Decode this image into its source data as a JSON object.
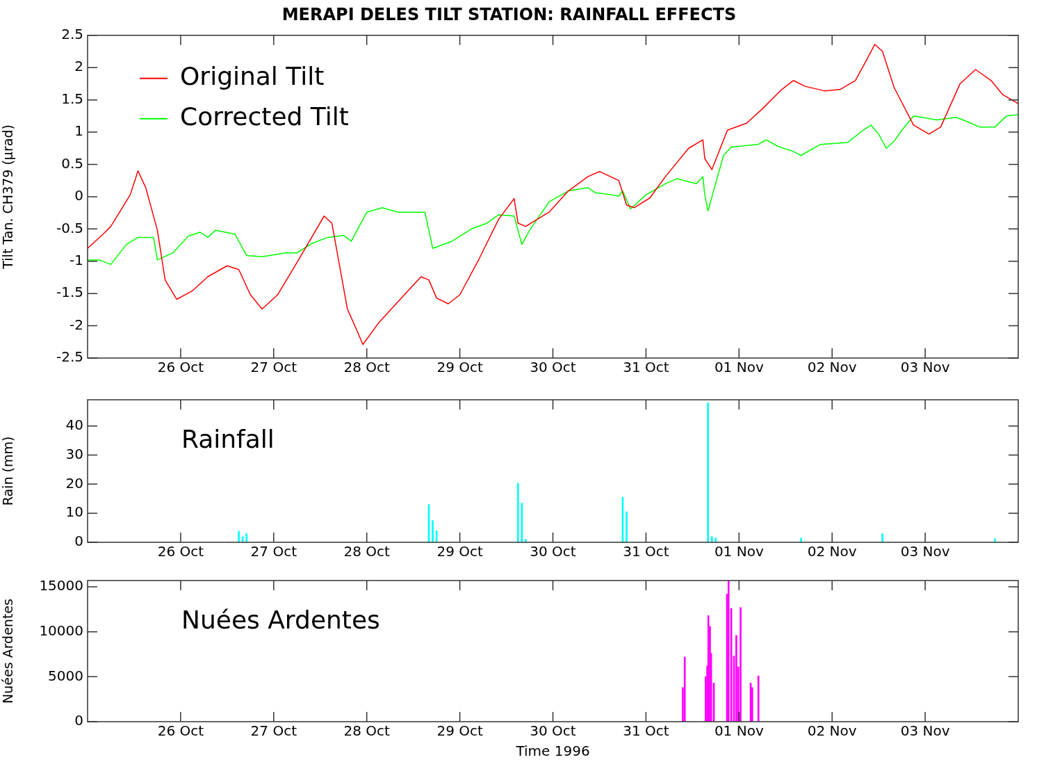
{
  "chart_data": [
    {
      "type": "line",
      "title": "MERAPI DELES TILT STATION: RAINFALL EFFECTS",
      "ylabel": "Tilt Tan. CH379 (µrad)",
      "legend": "top left",
      "xlim": [
        "1996-10-25",
        "1996-11-04"
      ],
      "xticks": [
        {
          "value": "1996-10-26",
          "label": "26 Oct"
        },
        {
          "value": "1996-10-27",
          "label": "27 Oct"
        },
        {
          "value": "1996-10-28",
          "label": "28 Oct"
        },
        {
          "value": "1996-10-29",
          "label": "29 Oct"
        },
        {
          "value": "1996-10-30",
          "label": "30 Oct"
        },
        {
          "value": "1996-10-31",
          "label": "31 Oct"
        },
        {
          "value": "1996-11-01",
          "label": "01 Nov"
        },
        {
          "value": "1996-11-02",
          "label": "02 Nov"
        },
        {
          "value": "1996-11-03",
          "label": "03 Nov"
        }
      ],
      "ylim": [
        -2.5,
        2.5
      ],
      "yticks": [
        -2.5,
        -2,
        -1.5,
        -1,
        -0.5,
        0,
        0.5,
        1,
        1.5,
        2,
        2.5
      ],
      "grid": false,
      "series": [
        {
          "name": "Original Tilt",
          "color": "#ff0000",
          "x": [
            "1996-10-25T00:00",
            "1996-10-25T04:00",
            "1996-10-25T06:00",
            "1996-10-25T11:00",
            "1996-10-25T13:00",
            "1996-10-25T15:00",
            "1996-10-25T18:00",
            "1996-10-25T20:00",
            "1996-10-25T23:00",
            "1996-10-26T03:00",
            "1996-10-26T07:00",
            "1996-10-26T12:00",
            "1996-10-26T15:00",
            "1996-10-26T18:00",
            "1996-10-26T21:00",
            "1996-10-27T01:00",
            "1996-10-27T06:00",
            "1996-10-27T13:00",
            "1996-10-27T15:00",
            "1996-10-27T19:00",
            "1996-10-27T21:00",
            "1996-10-27T23:00",
            "1996-10-28T03:00",
            "1996-10-28T08:00",
            "1996-10-28T14:00",
            "1996-10-28T16:00",
            "1996-10-28T18:00",
            "1996-10-28T21:00",
            "1996-10-29T00:00",
            "1996-10-29T05:00",
            "1996-10-29T10:00",
            "1996-10-29T14:00",
            "1996-10-29T15:00",
            "1996-10-29T17:00",
            "1996-10-29T23:00",
            "1996-10-30T04:00",
            "1996-10-30T09:00",
            "1996-10-30T12:00",
            "1996-10-30T17:00",
            "1996-10-30T19:00",
            "1996-10-30T21:00",
            "1996-10-31T01:00",
            "1996-10-31T05:00",
            "1996-10-31T11:00",
            "1996-10-31T14:40",
            "1996-10-31T15:10",
            "1996-10-31T17:00",
            "1996-10-31T21:00",
            "1996-11-01T02:00",
            "1996-11-01T06:00",
            "1996-11-01T11:00",
            "1996-11-01T14:00",
            "1996-11-01T17:00",
            "1996-11-01T22:00",
            "1996-11-02T02:00",
            "1996-11-02T06:00",
            "1996-11-02T09:00",
            "1996-11-02T11:00",
            "1996-11-02T13:00",
            "1996-11-02T16:00",
            "1996-11-02T21:00",
            "1996-11-03T01:00",
            "1996-11-03T04:00",
            "1996-11-03T09:00",
            "1996-11-03T13:00",
            "1996-11-03T17:00",
            "1996-11-03T20:00",
            "1996-11-04T00:00"
          ],
          "values": [
            -0.8,
            -0.58,
            -0.46,
            0.03,
            0.4,
            0.14,
            -0.52,
            -1.29,
            -1.59,
            -1.46,
            -1.24,
            -1.07,
            -1.13,
            -1.52,
            -1.74,
            -1.52,
            -1.02,
            -0.3,
            -0.41,
            -1.74,
            -2.01,
            -2.29,
            -1.96,
            -1.63,
            -1.24,
            -1.29,
            -1.57,
            -1.66,
            -1.52,
            -0.96,
            -0.35,
            -0.03,
            -0.41,
            -0.46,
            -0.24,
            0.09,
            0.31,
            0.39,
            0.25,
            -0.13,
            -0.17,
            -0.02,
            0.31,
            0.75,
            0.88,
            0.59,
            0.42,
            1.03,
            1.14,
            1.36,
            1.66,
            1.8,
            1.71,
            1.64,
            1.66,
            1.8,
            2.13,
            2.36,
            2.25,
            1.69,
            1.11,
            0.97,
            1.08,
            1.75,
            1.97,
            1.8,
            1.58,
            1.44
          ]
        },
        {
          "name": "Corrected Tilt",
          "color": "#00ff00",
          "x": [
            "1996-10-25T00:00",
            "1996-10-25T03:00",
            "1996-10-25T06:00",
            "1996-10-25T10:00",
            "1996-10-25T13:00",
            "1996-10-25T17:00",
            "1996-10-25T18:00",
            "1996-10-25T22:00",
            "1996-10-26T02:00",
            "1996-10-26T05:00",
            "1996-10-26T07:00",
            "1996-10-26T09:00",
            "1996-10-26T14:00",
            "1996-10-26T17:00",
            "1996-10-26T21:00",
            "1996-10-27T03:00",
            "1996-10-27T06:00",
            "1996-10-27T10:00",
            "1996-10-27T14:00",
            "1996-10-27T18:00",
            "1996-10-27T20:00",
            "1996-10-28T00:00",
            "1996-10-28T04:00",
            "1996-10-28T08:00",
            "1996-10-28T15:00",
            "1996-10-28T17:00",
            "1996-10-28T22:00",
            "1996-10-29T03:00",
            "1996-10-29T07:00",
            "1996-10-29T10:00",
            "1996-10-29T14:00",
            "1996-10-29T16:00",
            "1996-10-29T18:00",
            "1996-10-29T23:00",
            "1996-10-30T04:00",
            "1996-10-30T09:00",
            "1996-10-30T11:00",
            "1996-10-30T15:00",
            "1996-10-30T17:00",
            "1996-10-30T18:00",
            "1996-10-30T20:00",
            "1996-10-31T00:00",
            "1996-10-31T05:00",
            "1996-10-31T08:00",
            "1996-10-31T13:00",
            "1996-10-31T14:40",
            "1996-10-31T15:10",
            "1996-10-31T16:00",
            "1996-10-31T20:00",
            "1996-10-31T22:00",
            "1996-11-01T05:00",
            "1996-11-01T07:00",
            "1996-11-01T10:00",
            "1996-11-01T14:00",
            "1996-11-01T16:00",
            "1996-11-01T21:00",
            "1996-11-02T04:00",
            "1996-11-02T08:00",
            "1996-11-02T10:00",
            "1996-11-02T12:00",
            "1996-11-02T14:00",
            "1996-11-02T16:00",
            "1996-11-02T18:00",
            "1996-11-02T21:00",
            "1996-11-03T03:00",
            "1996-11-03T08:00",
            "1996-11-03T11:00",
            "1996-11-03T14:00",
            "1996-11-03T18:00",
            "1996-11-03T21:00",
            "1996-11-04T00:00"
          ],
          "values": [
            -0.98,
            -0.98,
            -1.05,
            -0.74,
            -0.63,
            -0.63,
            -0.98,
            -0.87,
            -0.61,
            -0.55,
            -0.63,
            -0.52,
            -0.58,
            -0.91,
            -0.93,
            -0.87,
            -0.87,
            -0.72,
            -0.63,
            -0.6,
            -0.69,
            -0.24,
            -0.17,
            -0.24,
            -0.24,
            -0.8,
            -0.69,
            -0.5,
            -0.41,
            -0.28,
            -0.3,
            -0.74,
            -0.52,
            -0.08,
            0.09,
            0.14,
            0.06,
            0.03,
            0.01,
            0.09,
            -0.19,
            0.03,
            0.2,
            0.28,
            0.2,
            0.31,
            0.03,
            -0.22,
            0.64,
            0.77,
            0.81,
            0.88,
            0.78,
            0.7,
            0.64,
            0.81,
            0.84,
            1.03,
            1.11,
            0.97,
            0.75,
            0.86,
            1.03,
            1.25,
            1.19,
            1.23,
            1.16,
            1.08,
            1.08,
            1.25,
            1.27
          ]
        }
      ]
    },
    {
      "type": "bar",
      "ylabel": "Rain (mm)",
      "annotations": [
        "Rainfall"
      ],
      "xlim": [
        "1996-10-25",
        "1996-11-04"
      ],
      "xticks": [
        {
          "value": "1996-10-26",
          "label": "26 Oct"
        },
        {
          "value": "1996-10-27",
          "label": "27 Oct"
        },
        {
          "value": "1996-10-28",
          "label": "28 Oct"
        },
        {
          "value": "1996-10-29",
          "label": "29 Oct"
        },
        {
          "value": "1996-10-30",
          "label": "30 Oct"
        },
        {
          "value": "1996-10-31",
          "label": "31 Oct"
        },
        {
          "value": "1996-11-01",
          "label": "01 Nov"
        },
        {
          "value": "1996-11-02",
          "label": "02 Nov"
        },
        {
          "value": "1996-11-03",
          "label": "03 Nov"
        }
      ],
      "ylim": [
        0,
        49
      ],
      "yticks": [
        0,
        10,
        20,
        30,
        40
      ],
      "grid": false,
      "x": [
        "1996-10-26T15:00",
        "1996-10-26T16:00",
        "1996-10-26T17:00",
        "1996-10-28T16:00",
        "1996-10-28T17:00",
        "1996-10-28T18:00",
        "1996-10-29T15:00",
        "1996-10-29T16:00",
        "1996-10-29T17:00",
        "1996-10-30T18:00",
        "1996-10-30T19:00",
        "1996-10-31T16:00",
        "1996-10-31T17:00",
        "1996-10-31T18:00",
        "1996-11-01T16:00",
        "1996-11-02T13:00",
        "1996-11-03T18:00"
      ],
      "values": [
        3.8,
        2,
        3,
        13,
        7.5,
        4,
        20.3,
        13.5,
        1,
        15.5,
        10.5,
        48,
        2,
        1.5,
        1.5,
        3,
        1.2
      ],
      "color": "#00ffff"
    },
    {
      "type": "bar",
      "ylabel": "Nuées Ardentes",
      "xlabel": "Time 1996",
      "annotations": [
        "Nuées Ardentes"
      ],
      "xlim": [
        "1996-10-25",
        "1996-11-04"
      ],
      "xticks": [
        {
          "value": "1996-10-26",
          "label": "26 Oct"
        },
        {
          "value": "1996-10-27",
          "label": "27 Oct"
        },
        {
          "value": "1996-10-28",
          "label": "28 Oct"
        },
        {
          "value": "1996-10-29",
          "label": "29 Oct"
        },
        {
          "value": "1996-10-30",
          "label": "30 Oct"
        },
        {
          "value": "1996-10-31",
          "label": "31 Oct"
        },
        {
          "value": "1996-11-01",
          "label": "01 Nov"
        },
        {
          "value": "1996-11-02",
          "label": "02 Nov"
        },
        {
          "value": "1996-11-03",
          "label": "03 Nov"
        }
      ],
      "ylim": [
        0,
        15700
      ],
      "yticks": [
        0,
        5000,
        10000,
        15000
      ],
      "grid": false,
      "x": [
        "1996-10-31T09:30",
        "1996-10-31T10:00",
        "1996-10-31T15:24",
        "1996-10-31T15:48",
        "1996-10-31T16:06",
        "1996-10-31T16:30",
        "1996-10-31T16:48",
        "1996-10-31T17:30",
        "1996-10-31T20:54",
        "1996-10-31T21:18",
        "1996-10-31T22:00",
        "1996-10-31T22:42",
        "1996-10-31T23:18",
        "1996-10-31T23:48",
        "1996-11-01T00:24",
        "1996-11-01T03:00",
        "1996-11-01T03:24",
        "1996-11-01T05:00"
      ],
      "values": [
        3800,
        7200,
        5000,
        6200,
        11800,
        10600,
        7600,
        4300,
        14200,
        15700,
        12600,
        7300,
        9600,
        6100,
        12700,
        4300,
        3800,
        5100
      ],
      "color": "#ff00ff"
    }
  ]
}
